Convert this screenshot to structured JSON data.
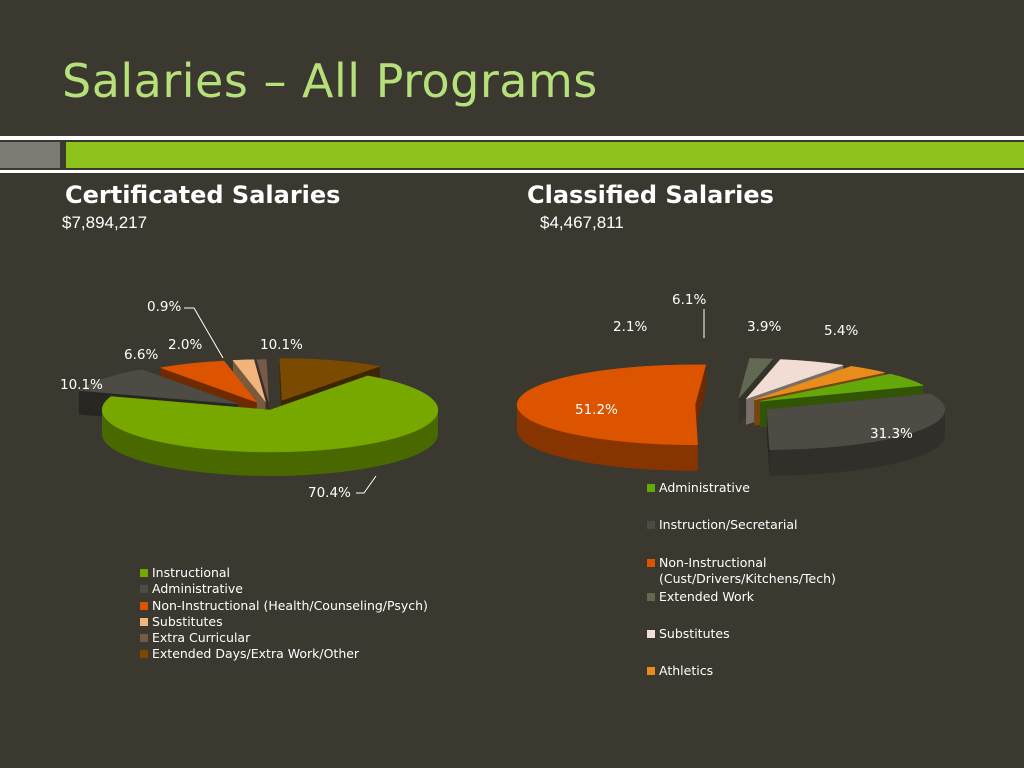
{
  "slide": {
    "title": "Salaries – All Programs"
  },
  "certificated": {
    "heading": "Certificated Salaries",
    "total": "$7,894,217",
    "legend": [
      {
        "label": "Instructional",
        "color": "#76a800"
      },
      {
        "label": "Administrative",
        "color": "#4d4b43"
      },
      {
        "label": "Non-Instructional (Health/Counseling/Psych)",
        "color": "#dc5400"
      },
      {
        "label": "Substitutes",
        "color": "#f0b47c"
      },
      {
        "label": "Extra Curricular",
        "color": "#77594a"
      },
      {
        "label": "Extended Days/Extra Work/Other",
        "color": "#7a4a00"
      }
    ]
  },
  "classified": {
    "heading": "Classified Salaries",
    "total": "$4,467,811",
    "legend": [
      {
        "label": "Administrative",
        "color": "#64a80a"
      },
      {
        "label": "Instruction/Secretarial",
        "color": "#4d4b43"
      },
      {
        "label": "Non-Instructional (Cust/Drivers/Kitchens/Tech)",
        "color": "#dc5400"
      },
      {
        "label": "Extended Work",
        "color": "#636852"
      },
      {
        "label": "Substitutes",
        "color": "#f2ddd4"
      },
      {
        "label": "Athletics",
        "color": "#e88c1c"
      }
    ]
  },
  "chart_data": [
    {
      "type": "pie",
      "title": "Certificated Salaries",
      "categories": [
        "Instructional",
        "Administrative",
        "Non-Instructional (Health/Counseling/Psych)",
        "Substitutes",
        "Extra Curricular",
        "Extended Days/Extra Work/Other"
      ],
      "values": [
        70.4,
        10.1,
        6.6,
        2.0,
        0.9,
        10.1
      ],
      "data_labels": [
        "70.4%",
        "10.1%",
        "6.6%",
        "2.0%",
        "0.9%",
        "10.1%"
      ],
      "colors": [
        "#76a800",
        "#4d4b43",
        "#dc5400",
        "#f0b47c",
        "#77594a",
        "#7a4a00"
      ],
      "exploded": true,
      "legend": "bottom-left"
    },
    {
      "type": "pie",
      "title": "Classified Salaries",
      "categories": [
        "Administrative",
        "Instruction/Secretarial",
        "Non-Instructional (Cust/Drivers/Kitchens/Tech)",
        "Extended Work",
        "Substitutes",
        "Athletics"
      ],
      "values": [
        5.4,
        31.3,
        51.2,
        2.1,
        6.1,
        3.9
      ],
      "data_labels": [
        "5.4%",
        "31.3%",
        "51.2%",
        "2.1%",
        "6.1%",
        "3.9%"
      ],
      "colors": [
        "#64a80a",
        "#4d4b43",
        "#dc5400",
        "#636852",
        "#f2ddd4",
        "#e88c1c"
      ],
      "exploded": true,
      "legend": "right"
    }
  ]
}
